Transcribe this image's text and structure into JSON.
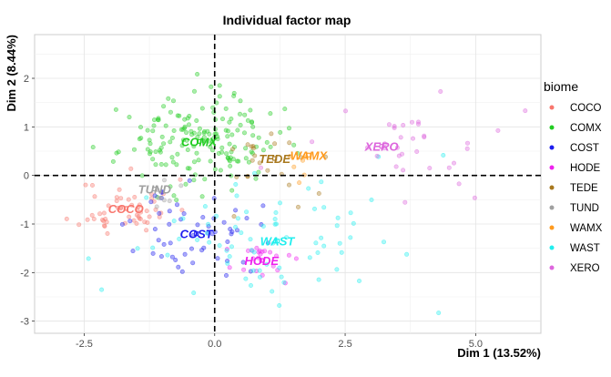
{
  "chart_data": {
    "type": "scatter",
    "title": "Individual factor map",
    "xlabel": "Dim 1 (13.52%)",
    "ylabel": "Dim 2 (8.44%)",
    "xlim": [
      -3.45,
      6.25
    ],
    "ylim": [
      -3.25,
      2.9
    ],
    "xticks": [
      -2.5,
      0.0,
      2.5,
      5.0
    ],
    "xtick_labels": [
      "-2.5",
      "0.0",
      "2.5",
      "5.0"
    ],
    "yticks": [
      -3,
      -2,
      -1,
      0,
      1,
      2
    ],
    "ytick_labels": [
      "-3",
      "-2",
      "-1",
      "0",
      "1",
      "2"
    ],
    "grid": true,
    "reference_lines": {
      "x": 0,
      "y": 0,
      "style": "dashed"
    },
    "legend": {
      "title": "biome",
      "position": "right"
    },
    "colors": {
      "COCO": "#F8766D",
      "COMX": "#22CC22",
      "COST": "#1E1EEE",
      "HODE": "#EE22EE",
      "TEDE": "#A8781E",
      "TUND": "#A0A0A0",
      "WAMX": "#FF9A1E",
      "WAST": "#22EEEE",
      "XERO": "#DD66DD"
    },
    "series": [
      {
        "name": "COCO",
        "centroid": [
          -1.7,
          -0.68
        ],
        "spread": [
          0.45,
          0.3
        ],
        "n": 55,
        "seed": 11
      },
      {
        "name": "COMX",
        "centroid": [
          -0.3,
          0.7
        ],
        "spread": [
          0.75,
          0.45
        ],
        "n": 170,
        "seed": 23
      },
      {
        "name": "COST",
        "centroid": [
          -0.35,
          -1.2
        ],
        "spread": [
          0.6,
          0.45
        ],
        "n": 55,
        "seed": 37
      },
      {
        "name": "HODE",
        "centroid": [
          0.9,
          -1.75
        ],
        "spread": [
          0.4,
          0.2
        ],
        "n": 22,
        "seed": 41
      },
      {
        "name": "TEDE",
        "centroid": [
          1.15,
          0.35
        ],
        "spread": [
          0.6,
          0.5
        ],
        "n": 22,
        "seed": 53
      },
      {
        "name": "TUND",
        "centroid": [
          -1.15,
          -0.28
        ],
        "spread": [
          0.3,
          0.2
        ],
        "n": 8,
        "seed": 61
      },
      {
        "name": "WAMX",
        "centroid": [
          1.8,
          0.42
        ],
        "spread": [
          0.35,
          0.3
        ],
        "n": 6,
        "seed": 71
      },
      {
        "name": "WAST",
        "centroid": [
          1.2,
          -1.35
        ],
        "spread": [
          1.3,
          0.7
        ],
        "n": 75,
        "seed": 83
      },
      {
        "name": "XERO",
        "centroid": [
          3.2,
          0.6
        ],
        "spread": [
          1.15,
          0.55
        ],
        "n": 35,
        "seed": 97
      }
    ]
  }
}
